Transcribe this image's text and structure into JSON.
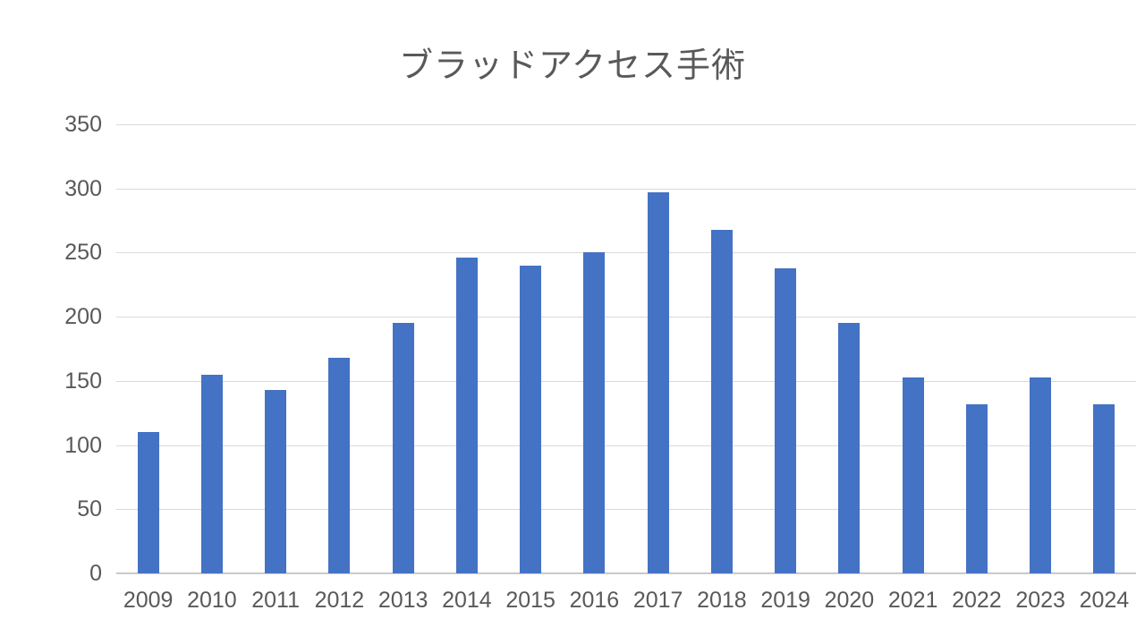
{
  "chart_data": {
    "type": "bar",
    "title": "ブラッドアクセス手術",
    "categories": [
      "2009",
      "2010",
      "2011",
      "2012",
      "2013",
      "2014",
      "2015",
      "2016",
      "2017",
      "2018",
      "2019",
      "2020",
      "2021",
      "2022",
      "2023",
      "2024"
    ],
    "values": [
      110,
      155,
      143,
      168,
      195,
      246,
      240,
      250,
      297,
      268,
      238,
      195,
      153,
      132,
      153,
      132
    ],
    "xlabel": "",
    "ylabel": "",
    "ylim": [
      0,
      350
    ],
    "yticks": [
      0,
      50,
      100,
      150,
      200,
      250,
      300,
      350
    ],
    "grid": true,
    "legend": "none",
    "bar_color": "#4472C4",
    "gridline_color": "#D9D9D9",
    "axis_line_color": "#C9C9C9",
    "label_color": "#595959",
    "title_color": "#595959",
    "background_color": "#FFFFFF"
  }
}
